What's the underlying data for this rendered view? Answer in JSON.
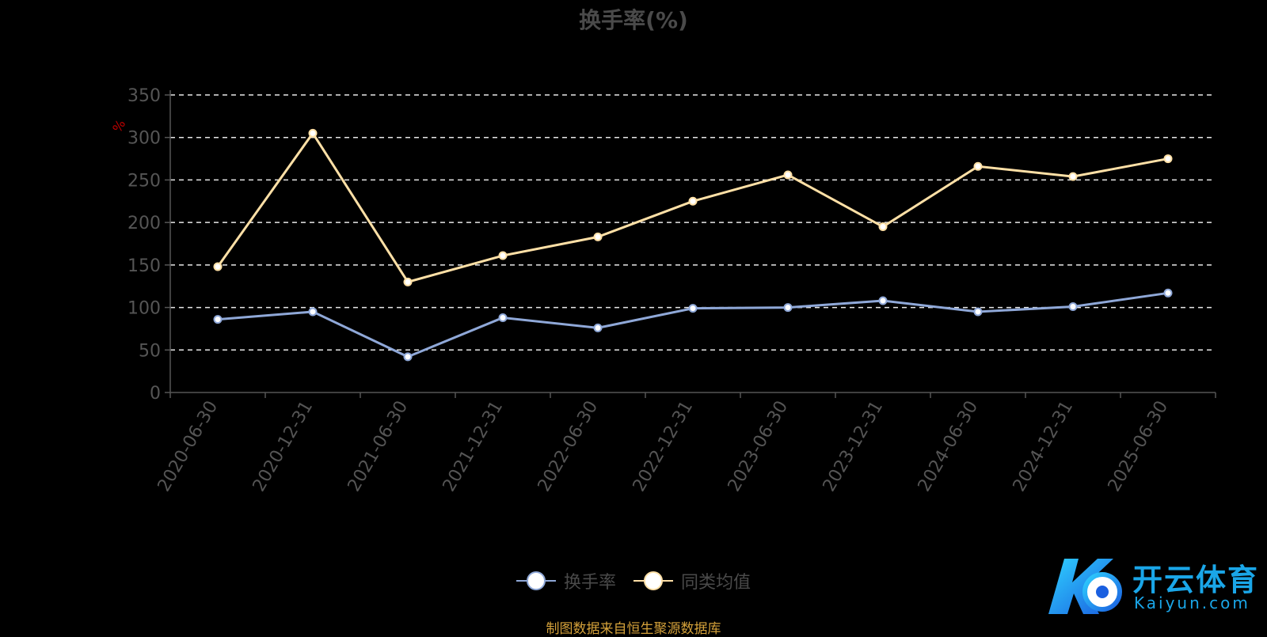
{
  "chart_data": {
    "type": "line",
    "title": "换手率(%)",
    "ylabel": "%",
    "ylim": [
      0,
      350
    ],
    "yticks": [
      0,
      50,
      100,
      150,
      200,
      250,
      300,
      350
    ],
    "grid": true,
    "legend_position": "bottom",
    "categories": [
      "2020-06-30",
      "2020-12-31",
      "2021-06-30",
      "2021-12-31",
      "2022-06-30",
      "2022-12-31",
      "2023-06-30",
      "2023-12-31",
      "2024-06-30",
      "2024-12-31",
      "2025-06-30"
    ],
    "series": [
      {
        "name": "换手率",
        "color": "#8fa8d8",
        "values": [
          86,
          95,
          42,
          88,
          76,
          99,
          100,
          108,
          95,
          101,
          117
        ]
      },
      {
        "name": "同类均值",
        "color": "#ffe0a6",
        "values": [
          148,
          305,
          130,
          161,
          183,
          225,
          256,
          195,
          266,
          254,
          275
        ]
      }
    ]
  },
  "source": "制图数据来自恒生聚源数据库",
  "logo": {
    "name": "开云体育",
    "sub": "Kaiyun.com"
  }
}
